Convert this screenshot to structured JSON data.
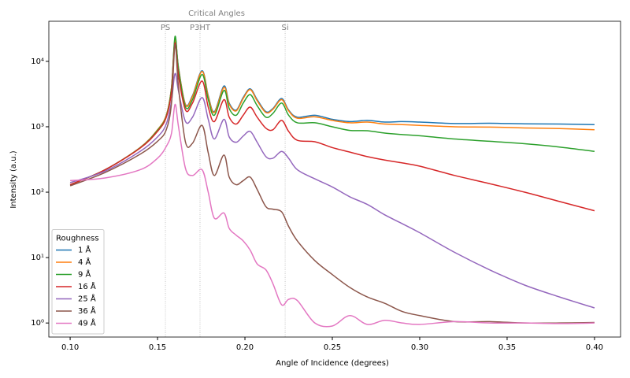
{
  "chart_data": {
    "type": "line",
    "xlabel": "Angle of Incidence (degrees)",
    "ylabel": "Intensity (a.u.)",
    "xlim": [
      0.0878,
      0.4149
    ],
    "ylim": [
      0.61,
      41000
    ],
    "yscale": "log",
    "xticks": [
      {
        "value": 0.1,
        "label": "0.10"
      },
      0.15,
      {
        "value": 0.2,
        "label": "0.20"
      },
      0.25,
      {
        "value": 0.3,
        "label": "0.30"
      },
      0.35,
      {
        "value": 0.4,
        "label": "0.40"
      }
    ],
    "yticks": [
      {
        "value": 1,
        "label": "10⁰"
      },
      {
        "value": 10,
        "label": "10¹"
      },
      {
        "value": 100,
        "label": "10²"
      },
      {
        "value": 1000,
        "label": "10³"
      },
      {
        "value": 10000,
        "label": "10⁴"
      }
    ],
    "legend_title": "Roughness",
    "legend_position": "lower left",
    "annotations": {
      "title": "Critical Angles",
      "lines": [
        {
          "x": 0.1545,
          "label": "PS"
        },
        {
          "x": 0.1743,
          "label": "P3HT"
        },
        {
          "x": 0.223,
          "label": "Si"
        }
      ]
    },
    "x": [
      0.1,
      0.12,
      0.14,
      0.15,
      0.155,
      0.158,
      0.16,
      0.162,
      0.166,
      0.17,
      0.1755,
      0.179,
      0.1825,
      0.188,
      0.191,
      0.195,
      0.199,
      0.203,
      0.207,
      0.212,
      0.216,
      0.221,
      0.225,
      0.23,
      0.24,
      0.25,
      0.26,
      0.27,
      0.28,
      0.29,
      0.3,
      0.32,
      0.34,
      0.36,
      0.38,
      0.4
    ],
    "series": [
      {
        "name": "1 Å",
        "color": "#1f77b4",
        "values": [
          130,
          220,
          480,
          900,
          1500,
          4000,
          22000,
          8000,
          2200,
          3000,
          7200,
          3000,
          1700,
          4200,
          2300,
          1800,
          2800,
          3800,
          2600,
          1700,
          1900,
          2700,
          1800,
          1400,
          1500,
          1300,
          1200,
          1250,
          1180,
          1200,
          1180,
          1120,
          1130,
          1110,
          1100,
          1080
        ]
      },
      {
        "name": "4 Å",
        "color": "#ff7f0e",
        "values": [
          130,
          220,
          480,
          900,
          1500,
          4000,
          21000,
          7800,
          2150,
          2900,
          7000,
          2900,
          1650,
          4000,
          2200,
          1750,
          2700,
          3700,
          2500,
          1650,
          1850,
          2600,
          1750,
          1350,
          1420,
          1250,
          1150,
          1180,
          1100,
          1080,
          1050,
          1000,
          990,
          960,
          940,
          900
        ]
      },
      {
        "name": "9 Å",
        "color": "#2ca02c",
        "values": [
          130,
          220,
          475,
          880,
          1450,
          3900,
          24000,
          7500,
          2000,
          2600,
          6300,
          2600,
          1500,
          3600,
          1900,
          1500,
          2300,
          3100,
          2100,
          1400,
          1600,
          2300,
          1500,
          1150,
          1150,
          1000,
          880,
          870,
          800,
          760,
          730,
          650,
          600,
          550,
          490,
          420
        ]
      },
      {
        "name": "16 Å",
        "color": "#d62728",
        "values": [
          130,
          220,
          470,
          850,
          1400,
          3500,
          19000,
          6000,
          1800,
          2300,
          5000,
          2000,
          1200,
          2600,
          1400,
          1100,
          1500,
          2000,
          1400,
          950,
          900,
          1250,
          850,
          620,
          590,
          480,
          410,
          350,
          310,
          280,
          250,
          180,
          135,
          100,
          72,
          52
        ]
      },
      {
        "name": "25 Å",
        "color": "#9467bd",
        "values": [
          140,
          210,
          420,
          700,
          1100,
          2500,
          6500,
          3500,
          1200,
          1400,
          2800,
          1300,
          650,
          1300,
          700,
          580,
          720,
          850,
          580,
          350,
          330,
          420,
          330,
          220,
          160,
          120,
          85,
          65,
          45,
          33,
          24,
          12,
          6.5,
          3.8,
          2.5,
          1.7
        ]
      },
      {
        "name": "36 Å",
        "color": "#8c564b",
        "values": [
          125,
          200,
          380,
          600,
          900,
          2300,
          18000,
          4000,
          580,
          560,
          1050,
          400,
          180,
          370,
          170,
          130,
          150,
          170,
          110,
          60,
          55,
          50,
          30,
          18,
          9,
          5.5,
          3.5,
          2.5,
          2.0,
          1.5,
          1.3,
          1.05,
          1.05,
          1.0,
          1.0,
          1.02
        ]
      },
      {
        "name": "49 Å",
        "color": "#e377c2",
        "values": [
          150,
          165,
          220,
          330,
          500,
          800,
          2200,
          1000,
          230,
          180,
          220,
          100,
          40,
          48,
          28,
          22,
          18,
          13,
          8,
          6.5,
          4,
          1.9,
          2.3,
          2.2,
          1.0,
          0.9,
          1.3,
          0.95,
          1.1,
          1.0,
          0.95,
          1.05,
          1.0,
          1.0,
          0.98,
          1.0
        ]
      }
    ]
  }
}
